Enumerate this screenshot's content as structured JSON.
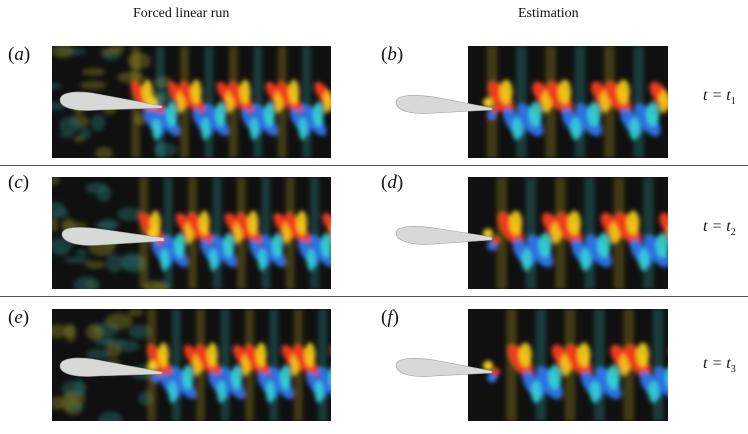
{
  "columns": {
    "left_title": "Forced linear run",
    "right_title": "Estimation"
  },
  "panels": [
    {
      "label": "a",
      "column": "forced",
      "time_label": "t = t1"
    },
    {
      "label": "b",
      "column": "estimation",
      "time_label": "t = t1"
    },
    {
      "label": "c",
      "column": "forced",
      "time_label": "t = t2"
    },
    {
      "label": "d",
      "column": "estimation",
      "time_label": "t = t2"
    },
    {
      "label": "e",
      "column": "forced",
      "time_label": "t = t3"
    },
    {
      "label": "f",
      "column": "estimation",
      "time_label": "t = t3"
    }
  ],
  "time_labels": [
    {
      "var": "t",
      "op": " =",
      "sym": "t",
      "sub": "1"
    },
    {
      "var": "t",
      "op": " =",
      "sym": "t",
      "sub": "2"
    },
    {
      "var": "t",
      "op": " =",
      "sym": "t",
      "sub": "3"
    }
  ],
  "colormap": [
    "#2f6fe0",
    "#33d6d2",
    "#0a0a0a",
    "#f2d21a",
    "#ee3a1a"
  ],
  "airfoil_color": "#d7d9d6"
}
